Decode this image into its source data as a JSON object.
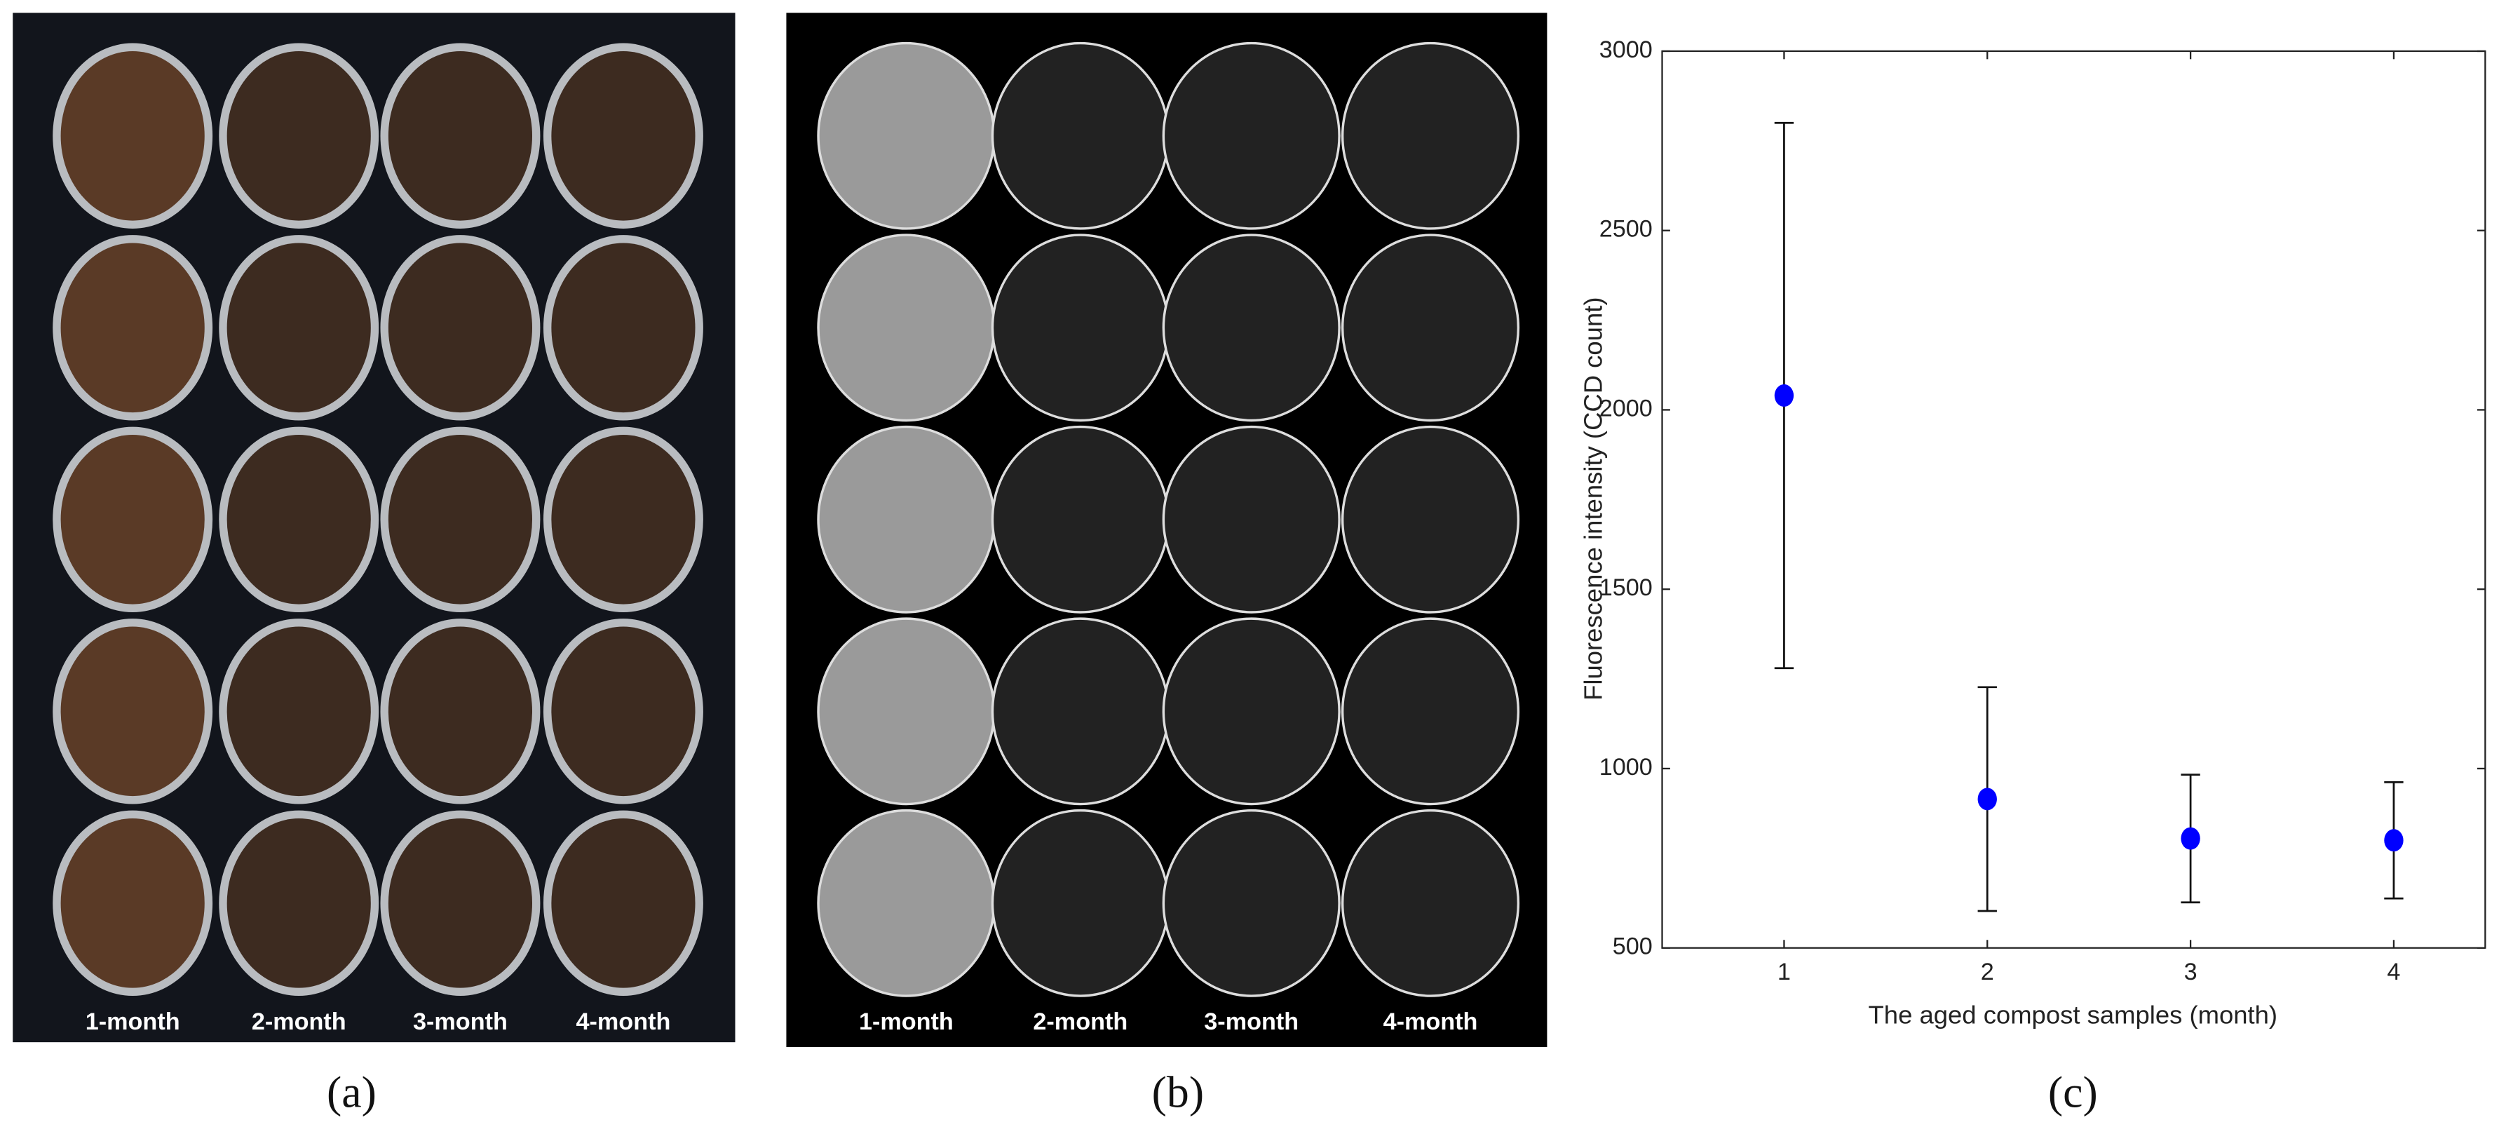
{
  "panels": [
    {
      "label": "(a)",
      "columns": [
        "1-month",
        "2-month",
        "3-month",
        "4-month"
      ]
    },
    {
      "label": "(b)",
      "columns": [
        "1-month",
        "2-month",
        "3-month",
        "4-month"
      ]
    },
    {
      "label": "(c)"
    }
  ],
  "chart_data": {
    "type": "scatter",
    "x_label": "The aged compost samples (month)",
    "y_label": "Fluorescence intensity (CCD count)",
    "x": [
      1,
      2,
      3,
      4
    ],
    "values": [
      2040,
      915,
      805,
      800
    ],
    "errors": [
      760,
      312,
      178,
      162
    ],
    "color": "#0000ff",
    "xlim": [
      0.4,
      4.45
    ],
    "xticks": [
      1,
      2,
      3,
      4
    ],
    "ylim": [
      500,
      3000
    ],
    "yticks": [
      500,
      1000,
      1500,
      2000,
      2500,
      3000
    ]
  }
}
